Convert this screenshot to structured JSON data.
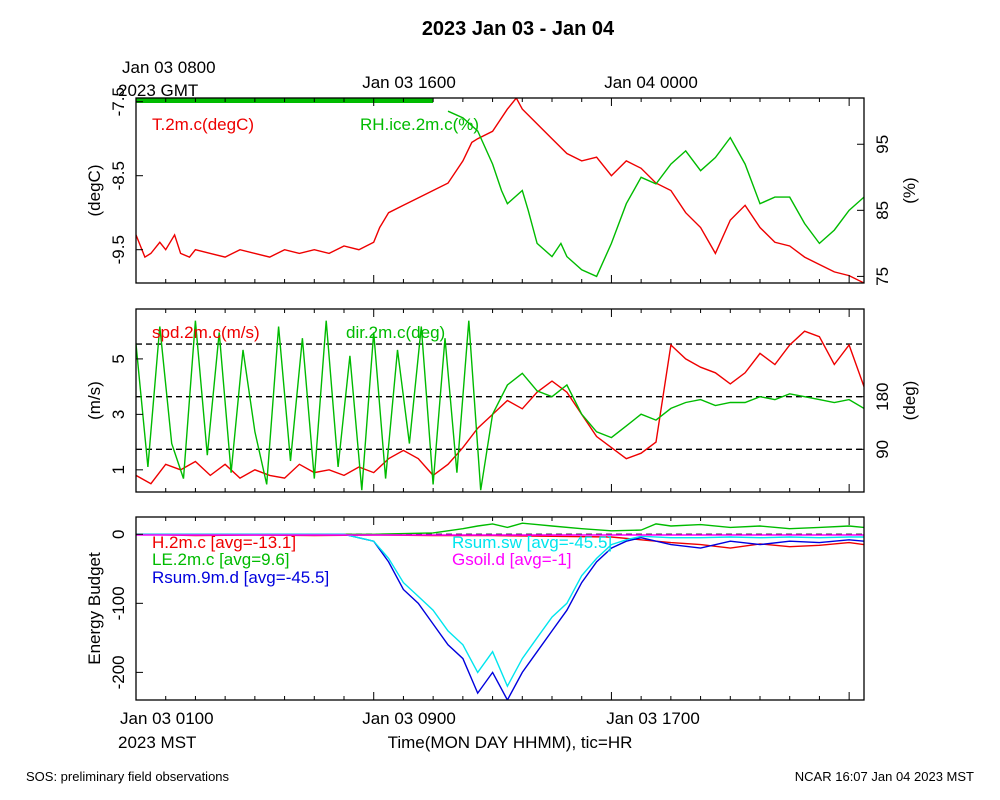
{
  "title": "2023 Jan 03 - Jan 04",
  "top_axis": {
    "first_label_line1": "Jan 03 0800",
    "first_label_line2": "2023 GMT",
    "labels": [
      "Jan 03 1600",
      "Jan 04 0000"
    ]
  },
  "bottom_axis": {
    "first_label_line1": "Jan 03 0100",
    "first_label_line2": "2023 MST",
    "labels": [
      "Jan 03 0900",
      "Jan 03 1700"
    ],
    "xlabel": "Time(MON DAY HHMM), tic=HR"
  },
  "footer": {
    "left": "SOS: preliminary field observations",
    "right": "NCAR 16:07 Jan 04 2023 MST"
  },
  "colors": {
    "red": "#ee0000",
    "green": "#00bb00",
    "blue": "#0000dd",
    "cyan": "#00e5ee",
    "magenta": "#ff00ff",
    "black": "#000000"
  },
  "chart_data": [
    {
      "type": "line",
      "title": "",
      "x_unit": "hours since 2023 Jan 03 0000 MST",
      "xlim": [
        0,
        24.5
      ],
      "left_axis": {
        "label": "(degC)",
        "ylim": [
          -9.95,
          -7.45
        ],
        "ticks": [
          -9.5,
          -8.5,
          -7.5
        ],
        "tick_labels": [
          "-9.5",
          "-8.5",
          "-7.5"
        ]
      },
      "right_axis": {
        "label": "(%)",
        "ylim": [
          74,
          102
        ],
        "ticks": [
          75,
          85,
          95
        ],
        "tick_labels": [
          "75",
          "85",
          "95"
        ]
      },
      "series": [
        {
          "name": "T.2m.c(degC)",
          "color_key": "red",
          "axis": "left",
          "x": [
            0,
            0.3,
            0.5,
            0.8,
            1,
            1.3,
            1.5,
            1.8,
            2,
            2.5,
            3,
            3.5,
            4,
            4.5,
            5,
            5.5,
            6,
            6.5,
            7,
            7.5,
            8,
            8.2,
            8.5,
            9,
            9.5,
            10,
            10.5,
            11,
            11.3,
            11.5,
            12,
            12.5,
            12.8,
            13,
            13.5,
            14,
            14.5,
            15,
            15.5,
            16,
            16.5,
            17,
            17.5,
            18,
            18.5,
            19,
            19.5,
            20,
            20.5,
            21,
            21.5,
            22,
            22.5,
            23,
            23.5,
            24,
            24.5
          ],
          "y": [
            -9.3,
            -9.6,
            -9.55,
            -9.4,
            -9.5,
            -9.3,
            -9.55,
            -9.6,
            -9.5,
            -9.55,
            -9.6,
            -9.5,
            -9.55,
            -9.6,
            -9.5,
            -9.55,
            -9.5,
            -9.55,
            -9.45,
            -9.5,
            -9.4,
            -9.2,
            -9.0,
            -8.9,
            -8.8,
            -8.7,
            -8.6,
            -8.3,
            -8.05,
            -8.0,
            -7.9,
            -7.6,
            -7.45,
            -7.6,
            -7.8,
            -8.0,
            -8.2,
            -8.3,
            -8.25,
            -8.5,
            -8.3,
            -8.4,
            -8.6,
            -8.7,
            -9.0,
            -9.2,
            -9.55,
            -9.1,
            -8.9,
            -9.2,
            -9.4,
            -9.45,
            -9.6,
            -9.7,
            -9.8,
            -9.85,
            -9.95
          ]
        },
        {
          "name": "RH.ice.2m.c(%)",
          "color_key": "green",
          "axis": "right",
          "x": [
            10.5,
            11,
            11.5,
            12,
            12.3,
            12.5,
            13,
            13.2,
            13.5,
            14,
            14.3,
            14.5,
            15,
            15.5,
            16,
            16.5,
            17,
            17.5,
            18,
            18.5,
            19,
            19.5,
            20,
            20.5,
            21,
            21.5,
            22,
            22.5,
            23,
            23.5,
            24,
            24.5
          ],
          "y": [
            100,
            99,
            97,
            92,
            88,
            86,
            88,
            85,
            80,
            78,
            80,
            78,
            76,
            75,
            80,
            86,
            90,
            89,
            92,
            94,
            91,
            93,
            96,
            92,
            86,
            87,
            87,
            83,
            80,
            82,
            85,
            87
          ]
        }
      ],
      "legend": [
        {
          "label": "T.2m.c(degC)",
          "color_key": "red"
        },
        {
          "label": "RH.ice.2m.c(%)",
          "color_key": "green"
        }
      ],
      "annotations": [
        "green marker bar along top edge from Jan 03 0000 to Jan 03 1000 MST"
      ]
    },
    {
      "type": "line",
      "x_unit": "hours since 2023 Jan 03 0000 MST",
      "xlim": [
        0,
        24.5
      ],
      "left_axis": {
        "label": "(m/s)",
        "ylim": [
          0.2,
          6.8
        ],
        "ticks": [
          1,
          3,
          5
        ],
        "tick_labels": [
          "1",
          "3",
          "5"
        ]
      },
      "right_axis": {
        "label": "(deg)",
        "ylim": [
          17,
          330
        ],
        "ticks": [
          90,
          180
        ],
        "tick_labels": [
          "90",
          "180"
        ]
      },
      "reference_lines_deg": [
        90,
        180,
        270
      ],
      "series": [
        {
          "name": "spd.2m.c(m/s)",
          "color_key": "red",
          "axis": "left",
          "x": [
            0,
            0.5,
            1,
            1.5,
            2,
            2.5,
            3,
            3.5,
            4,
            4.5,
            5,
            5.5,
            6,
            6.5,
            7,
            7.5,
            8,
            8.5,
            9,
            9.5,
            10,
            10.5,
            11,
            11.5,
            12,
            12.5,
            13,
            13.5,
            14,
            14.5,
            15,
            15.5,
            16,
            16.5,
            17,
            17.5,
            18,
            18.5,
            19,
            19.5,
            20,
            20.5,
            21,
            21.5,
            22,
            22.5,
            23,
            23.5,
            24,
            24.5
          ],
          "y": [
            0.8,
            0.5,
            1.2,
            1.0,
            1.3,
            0.8,
            1.2,
            0.7,
            1.0,
            0.8,
            0.7,
            1.2,
            0.9,
            1.0,
            0.8,
            1.1,
            0.9,
            1.4,
            1.7,
            1.4,
            0.8,
            1.2,
            1.8,
            2.5,
            3.0,
            3.5,
            3.2,
            3.8,
            4.2,
            3.8,
            3.0,
            2.2,
            1.8,
            1.4,
            1.6,
            2.0,
            5.5,
            5.0,
            4.7,
            4.5,
            4.1,
            4.5,
            5.2,
            4.8,
            5.5,
            6.0,
            5.8,
            4.8,
            5.5,
            4.0
          ]
        },
        {
          "name": "dir.2m.c(deg)",
          "color_key": "green",
          "axis": "right",
          "x": [
            0,
            0.4,
            0.8,
            1.2,
            1.6,
            2.0,
            2.4,
            2.8,
            3.2,
            3.6,
            4.0,
            4.4,
            4.8,
            5.2,
            5.6,
            6.0,
            6.4,
            6.8,
            7.2,
            7.6,
            8.0,
            8.4,
            8.8,
            9.2,
            9.6,
            10.0,
            10.4,
            10.8,
            11.2,
            11.6,
            12.0,
            12.5,
            13,
            13.5,
            14,
            14.5,
            15,
            15.5,
            16,
            16.5,
            17,
            17.5,
            18,
            18.5,
            19,
            19.5,
            20,
            20.5,
            21,
            21.5,
            22,
            22.5,
            23,
            23.5,
            24,
            24.5
          ],
          "y": [
            270,
            60,
            300,
            100,
            40,
            310,
            80,
            290,
            50,
            260,
            120,
            30,
            300,
            70,
            280,
            40,
            310,
            60,
            250,
            20,
            290,
            40,
            260,
            100,
            300,
            30,
            280,
            50,
            310,
            20,
            150,
            200,
            220,
            190,
            180,
            200,
            150,
            120,
            110,
            130,
            150,
            140,
            160,
            170,
            175,
            165,
            170,
            170,
            180,
            175,
            185,
            180,
            175,
            170,
            175,
            160
          ]
        }
      ],
      "legend": [
        {
          "label": "spd.2m.c(m/s)",
          "color_key": "red"
        },
        {
          "label": "dir.2m.c(deg)",
          "color_key": "green"
        }
      ]
    },
    {
      "type": "line",
      "x_unit": "hours since 2023 Jan 03 0000 MST",
      "xlim": [
        0,
        24.5
      ],
      "left_axis": {
        "label": "Energy Budget",
        "ylim": [
          -240,
          25
        ],
        "ticks": [
          -200,
          -100,
          0
        ],
        "tick_labels": [
          "-200",
          "-100",
          "0"
        ]
      },
      "zero_line": 0,
      "series": [
        {
          "name": "H.2m.c",
          "avg_label": "[avg=-13.1]",
          "color_key": "red",
          "x": [
            0,
            2,
            4,
            6,
            8,
            10,
            12,
            14,
            16,
            17,
            18,
            19,
            20,
            21,
            22,
            23,
            24,
            24.5
          ],
          "y": [
            0,
            -2,
            -1,
            -2,
            -1,
            -2,
            -2,
            -3,
            -4,
            -8,
            -12,
            -15,
            -20,
            -14,
            -18,
            -16,
            -12,
            -15
          ]
        },
        {
          "name": "LE.2m.c",
          "avg_label": "[avg=9.6]",
          "color_key": "green",
          "x": [
            0,
            4,
            8,
            10,
            11,
            11.5,
            12,
            12.5,
            13,
            13.5,
            14,
            15,
            16,
            17,
            17.5,
            18,
            19,
            20,
            21,
            22,
            23,
            24,
            24.5
          ],
          "y": [
            0,
            0,
            0,
            2,
            8,
            12,
            15,
            10,
            16,
            14,
            12,
            8,
            5,
            6,
            15,
            12,
            14,
            10,
            12,
            8,
            10,
            12,
            10
          ]
        },
        {
          "name": "Rsum.9m.d",
          "avg_label": "[avg=-45.5]",
          "color_key": "blue",
          "x": [
            0,
            7,
            8,
            8.5,
            9,
            9.5,
            10,
            10.5,
            11,
            11.5,
            12,
            12.5,
            13,
            13.5,
            14,
            14.5,
            15,
            15.5,
            16,
            16.5,
            17,
            18,
            19,
            20,
            21,
            22,
            23,
            24,
            24.5
          ],
          "y": [
            0,
            0,
            -10,
            -40,
            -80,
            -100,
            -130,
            -160,
            -180,
            -230,
            -200,
            -240,
            -200,
            -170,
            -140,
            -110,
            -70,
            -40,
            -20,
            -10,
            -5,
            -15,
            -20,
            -10,
            -15,
            -10,
            -12,
            -8,
            -10
          ]
        },
        {
          "name": "Rsum.sw",
          "avg_label": "[avg=-45.5]",
          "color_key": "cyan",
          "x": [
            0,
            7,
            8,
            8.5,
            9,
            9.5,
            10,
            10.5,
            11,
            11.5,
            12,
            12.5,
            13,
            13.5,
            14,
            14.5,
            15,
            15.5,
            16,
            16.5,
            17,
            18,
            19,
            20,
            21,
            22,
            23,
            24,
            24.5
          ],
          "y": [
            0,
            0,
            -10,
            -35,
            -70,
            -90,
            -110,
            -140,
            -160,
            -200,
            -170,
            -220,
            -180,
            -150,
            -120,
            -100,
            -60,
            -35,
            -15,
            -8,
            -3,
            -5,
            -5,
            -4,
            -5,
            -4,
            -5,
            -4,
            -4
          ]
        },
        {
          "name": "Gsoil.d",
          "avg_label": "[avg=-1]",
          "color_key": "magenta",
          "x": [
            0,
            24.5
          ],
          "y": [
            -1,
            -1
          ]
        }
      ],
      "legend": [
        {
          "label": "H.2m.c [avg=-13.1]",
          "color_key": "red"
        },
        {
          "label": "LE.2m.c [avg=9.6]",
          "color_key": "green"
        },
        {
          "label": "Rsum.9m.d [avg=-45.5]",
          "color_key": "blue"
        },
        {
          "label": "Rsum.sw [avg=-45.5]",
          "color_key": "cyan"
        },
        {
          "label": "Gsoil.d [avg=-1]",
          "color_key": "magenta"
        }
      ]
    }
  ]
}
